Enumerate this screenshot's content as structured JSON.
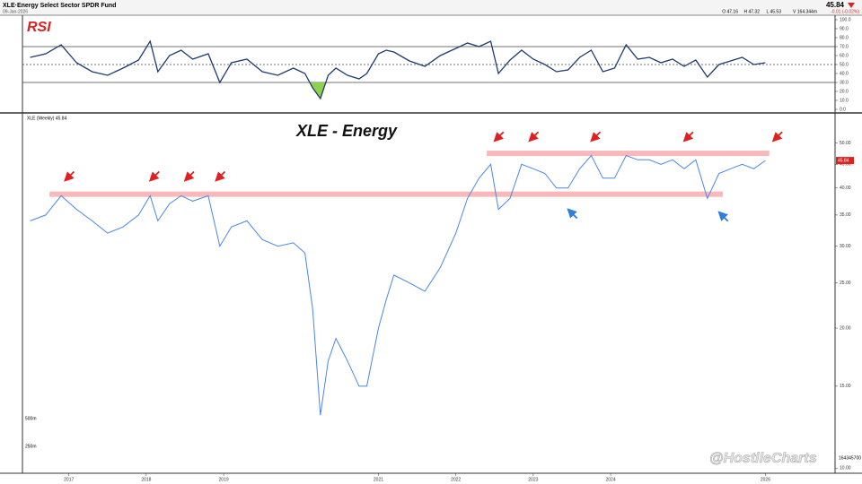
{
  "header": {
    "symbol": "XLE·Energy Select Sector SPDR Fund",
    "date": "09-Jan-2026",
    "price": "45.84",
    "quote": [
      "O 47.16",
      "H 47.32",
      "L 45.53",
      "V 164.344m"
    ],
    "change": "-0.01 (-0.02%)"
  },
  "volume_axis": {
    "labels": [
      "500m",
      "250m"
    ],
    "last": "164345700"
  },
  "watermark": "@HostileCharts",
  "chart_data": [
    {
      "type": "line",
      "title": "RSI",
      "color": "#1f3a6e",
      "fill_below": "#8fd14f",
      "x": [
        2016.5,
        2016.7,
        2016.9,
        2017.1,
        2017.3,
        2017.5,
        2017.7,
        2017.9,
        2018.05,
        2018.15,
        2018.3,
        2018.45,
        2018.6,
        2018.8,
        2018.95,
        2019.1,
        2019.3,
        2019.5,
        2019.7,
        2019.9,
        2020.05,
        2020.15,
        2020.25,
        2020.35,
        2020.45,
        2020.6,
        2020.75,
        2020.85,
        2021.0,
        2021.1,
        2021.2,
        2021.4,
        2021.6,
        2021.8,
        2022.0,
        2022.15,
        2022.3,
        2022.45,
        2022.55,
        2022.7,
        2022.85,
        2023.0,
        2023.15,
        2023.3,
        2023.45,
        2023.6,
        2023.75,
        2023.9,
        2024.05,
        2024.2,
        2024.35,
        2024.5,
        2024.65,
        2024.8,
        2024.95,
        2025.1,
        2025.25,
        2025.4,
        2025.55,
        2025.7,
        2025.85,
        2026.0
      ],
      "values": [
        58,
        62,
        72,
        52,
        42,
        38,
        46,
        55,
        76,
        42,
        60,
        66,
        56,
        62,
        30,
        52,
        56,
        42,
        38,
        46,
        40,
        24,
        12,
        38,
        46,
        38,
        34,
        40,
        62,
        66,
        64,
        54,
        48,
        60,
        68,
        74,
        70,
        76,
        40,
        55,
        66,
        56,
        50,
        42,
        44,
        58,
        66,
        42,
        46,
        72,
        56,
        58,
        52,
        56,
        48,
        55,
        36,
        50,
        54,
        58,
        50,
        52
      ],
      "xlim": [
        2016.4,
        2026.9
      ],
      "ylim": [
        0,
        100
      ],
      "yticks": [
        {
          "value": 0,
          "label": "0.0"
        },
        {
          "value": 10,
          "label": "10.0"
        },
        {
          "value": 20,
          "label": "20.0"
        },
        {
          "value": 30,
          "label": "30.0"
        },
        {
          "value": 40,
          "label": "40.0"
        },
        {
          "value": 50,
          "label": "50.0"
        },
        {
          "value": 60,
          "label": "60.0"
        },
        {
          "value": 70,
          "label": "70.0"
        },
        {
          "value": 80,
          "label": "80.0"
        },
        {
          "value": 90,
          "label": "90.0"
        },
        {
          "value": 100,
          "label": "100.0"
        }
      ],
      "reference_lines": [
        70,
        50,
        30
      ]
    },
    {
      "type": "line",
      "title": "XLE - Energy",
      "subtitle": "XLE (Weekly) 45.84",
      "color": "#4a86e8",
      "log_scale": true,
      "x": [
        2016.5,
        2016.7,
        2016.9,
        2017.1,
        2017.3,
        2017.5,
        2017.7,
        2017.9,
        2018.05,
        2018.15,
        2018.3,
        2018.45,
        2018.6,
        2018.8,
        2018.95,
        2019.1,
        2019.3,
        2019.5,
        2019.7,
        2019.9,
        2020.05,
        2020.15,
        2020.25,
        2020.35,
        2020.45,
        2020.6,
        2020.75,
        2020.85,
        2021.0,
        2021.1,
        2021.2,
        2021.4,
        2021.6,
        2021.8,
        2022.0,
        2022.15,
        2022.3,
        2022.45,
        2022.55,
        2022.7,
        2022.85,
        2023.0,
        2023.15,
        2023.3,
        2023.45,
        2023.6,
        2023.75,
        2023.9,
        2024.05,
        2024.2,
        2024.35,
        2024.5,
        2024.65,
        2024.8,
        2024.95,
        2025.1,
        2025.25,
        2025.4,
        2025.55,
        2025.7,
        2025.85,
        2026.0
      ],
      "values": [
        34,
        35,
        38.5,
        36,
        34,
        32,
        33,
        35,
        38.5,
        34,
        37,
        38.5,
        37.5,
        38.5,
        30,
        33,
        34,
        31,
        30,
        30.5,
        29,
        22,
        13,
        17,
        19,
        17,
        15,
        15,
        20,
        23,
        26,
        25,
        24,
        27,
        32,
        38,
        42,
        45,
        36,
        38,
        45,
        44,
        43,
        40,
        40,
        44,
        47,
        42,
        42,
        47,
        46,
        46,
        45,
        46,
        44,
        46,
        38,
        43,
        44,
        45,
        44,
        45.84
      ],
      "last_value": {
        "value": 45.84,
        "label": "45.84"
      },
      "last_color": "#e02020",
      "xlim": [
        2016.4,
        2026.9
      ],
      "xticks": [
        2017,
        2018,
        2019,
        2021,
        2022,
        2023,
        2024,
        2026
      ],
      "ylim": [
        9.75,
        57.5
      ],
      "yticks": [
        {
          "value": 10,
          "label": "10.00"
        },
        {
          "value": 15,
          "label": "15.00"
        },
        {
          "value": 20,
          "label": "20.00"
        },
        {
          "value": 25,
          "label": "25.00"
        },
        {
          "value": 30,
          "label": "30.00"
        },
        {
          "value": 35,
          "label": "35.00"
        },
        {
          "value": 40,
          "label": "40.00"
        },
        {
          "value": 45,
          "label": "45.00"
        },
        {
          "value": 50,
          "label": "50.00"
        }
      ],
      "levels": [
        {
          "value": 38.8,
          "from": 2016.75,
          "to": 2025.45,
          "color": "#f7b9b9"
        },
        {
          "value": 47.5,
          "from": 2022.4,
          "to": 2026.05,
          "color": "#f7b9b9"
        }
      ],
      "annotations": [
        {
          "x": 2016.95,
          "y": 41.5,
          "color": "#e02020"
        },
        {
          "x": 2018.05,
          "y": 41.5,
          "color": "#e02020"
        },
        {
          "x": 2018.5,
          "y": 41.5,
          "color": "#e02020"
        },
        {
          "x": 2018.9,
          "y": 41.5,
          "color": "#e02020"
        },
        {
          "x": 2022.5,
          "y": 50.5,
          "color": "#e02020"
        },
        {
          "x": 2022.95,
          "y": 50.5,
          "color": "#e02020"
        },
        {
          "x": 2023.75,
          "y": 50.5,
          "color": "#e02020"
        },
        {
          "x": 2024.95,
          "y": 50.5,
          "color": "#e02020"
        },
        {
          "x": 2026.1,
          "y": 50.5,
          "color": "#e02020"
        },
        {
          "x": 2023.45,
          "y": 36,
          "color": "#2f7de1"
        },
        {
          "x": 2025.4,
          "y": 35.5,
          "color": "#2f7de1"
        }
      ]
    }
  ]
}
